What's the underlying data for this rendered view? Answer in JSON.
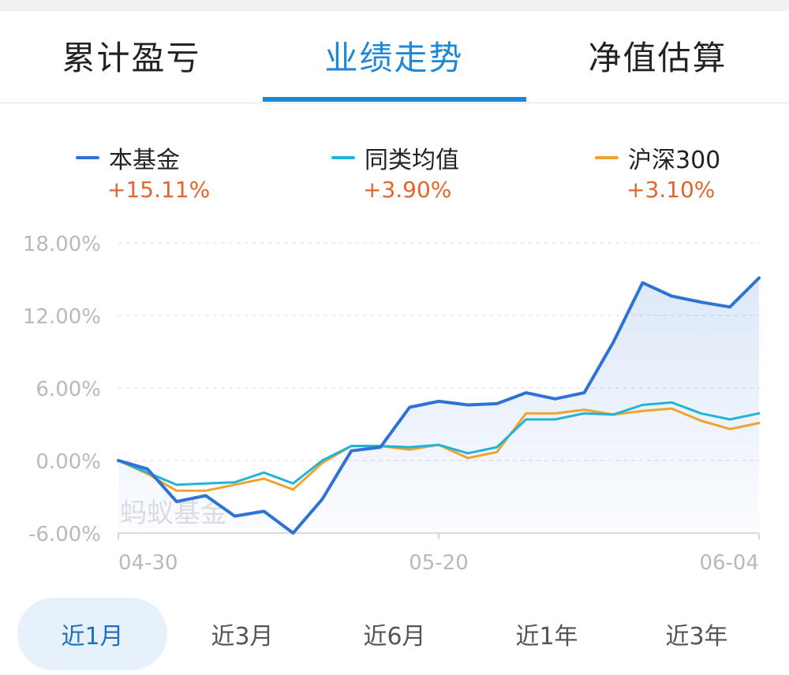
{
  "tabs": [
    {
      "label": "累计盈亏"
    },
    {
      "label": "业绩走势"
    },
    {
      "label": "净值估算"
    }
  ],
  "active_tab": 1,
  "legend": [
    {
      "name": "本基金",
      "value": "+15.11%",
      "color": "#2f72d6"
    },
    {
      "name": "同类均值",
      "value": "+3.90%",
      "color": "#22b4d8"
    },
    {
      "name": "沪深300",
      "value": "+3.10%",
      "color": "#f0a22e"
    }
  ],
  "watermark": "蚂蚁基金",
  "periods": [
    {
      "label": "近1月"
    },
    {
      "label": "近3月"
    },
    {
      "label": "近6月"
    },
    {
      "label": "近1年"
    },
    {
      "label": "近3年"
    }
  ],
  "active_period": 0,
  "chart_data": {
    "type": "line",
    "x_tick_labels": [
      "04-30",
      "05-20",
      "06-04"
    ],
    "y_tick_labels": [
      "18.00%",
      "12.00%",
      "6.00%",
      "0.00%",
      "-6.00%"
    ],
    "y_ticks": [
      18,
      12,
      6,
      0,
      -6
    ],
    "ylim": [
      -6,
      18
    ],
    "grid": true,
    "legend_position": "top",
    "series": [
      {
        "name": "本基金",
        "color": "#2f72d6",
        "area_fill": true,
        "values": [
          0.0,
          -0.7,
          -3.4,
          -2.9,
          -4.6,
          -4.2,
          -6.0,
          -3.2,
          0.8,
          1.1,
          4.4,
          4.9,
          4.6,
          4.7,
          5.6,
          5.1,
          5.6,
          9.8,
          14.7,
          13.6,
          13.1,
          12.7,
          15.1
        ]
      },
      {
        "name": "同类均值",
        "color": "#22b4d8",
        "area_fill": false,
        "values": [
          0.0,
          -1.0,
          -2.0,
          -1.9,
          -1.8,
          -1.0,
          -1.9,
          0.0,
          1.2,
          1.2,
          1.1,
          1.3,
          0.6,
          1.1,
          3.4,
          3.4,
          3.9,
          3.8,
          4.6,
          4.8,
          3.9,
          3.4,
          3.9
        ]
      },
      {
        "name": "沪深300",
        "color": "#f0a22e",
        "area_fill": false,
        "values": [
          0.0,
          -1.1,
          -2.5,
          -2.5,
          -2.0,
          -1.5,
          -2.4,
          -0.2,
          1.2,
          1.2,
          0.9,
          1.3,
          0.2,
          0.7,
          3.9,
          3.9,
          4.2,
          3.8,
          4.1,
          4.3,
          3.3,
          2.6,
          3.1
        ]
      }
    ]
  }
}
